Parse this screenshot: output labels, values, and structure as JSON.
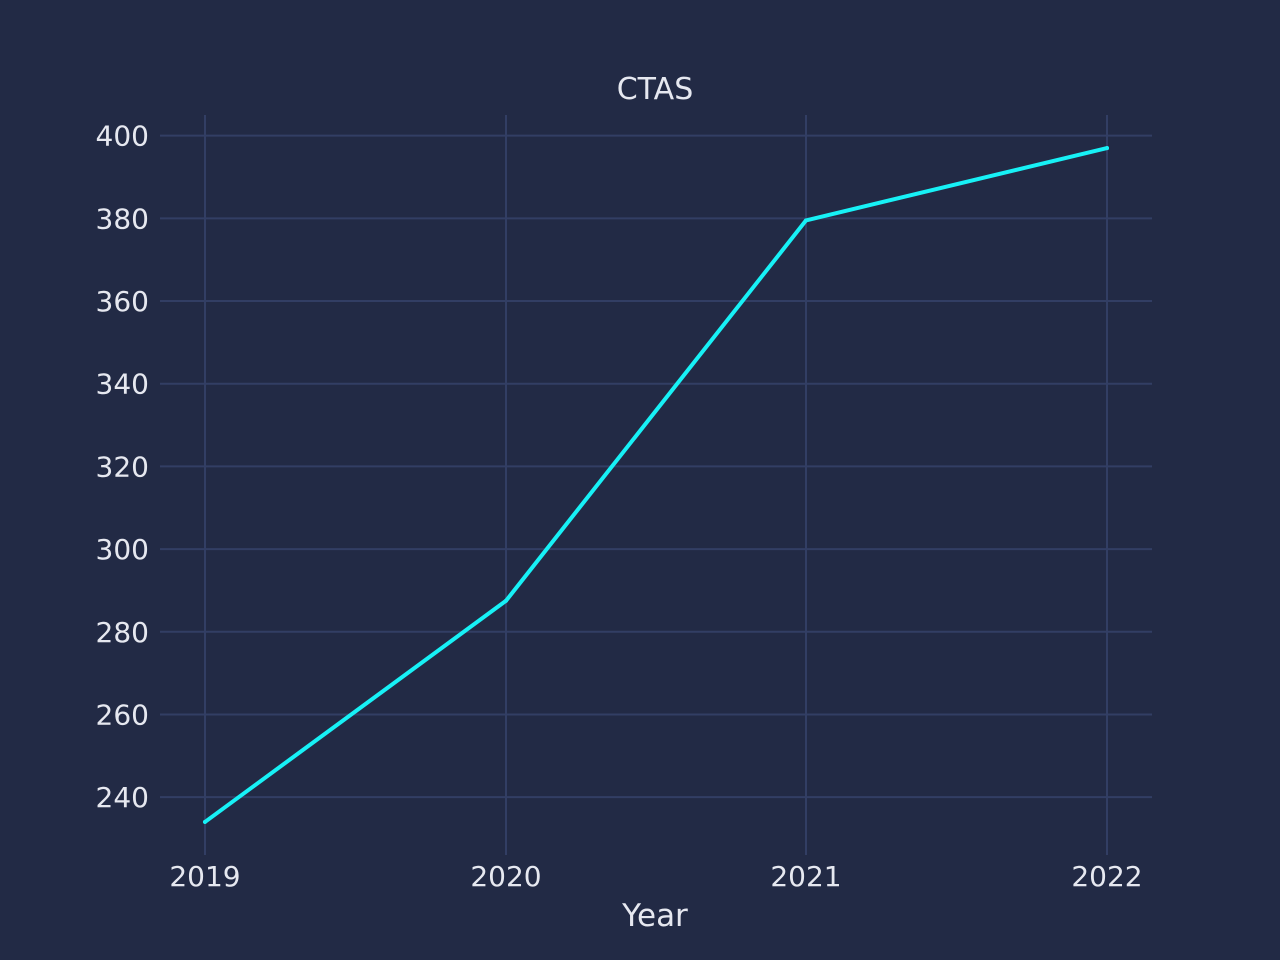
{
  "chart_data": {
    "type": "line",
    "title": "CTAS",
    "xlabel": "Year",
    "ylabel": "",
    "x": [
      "2019",
      "2020",
      "2021",
      "2022"
    ],
    "series": [
      {
        "values": [
          234,
          287.5,
          379.5,
          397
        ],
        "color": "#17f1f6"
      }
    ],
    "y_ticks": [
      "240",
      "260",
      "280",
      "300",
      "320",
      "340",
      "360",
      "380",
      "400"
    ],
    "ylim": [
      226,
      405
    ],
    "grid": true,
    "legend": "none",
    "colors": {
      "background": "#222a45",
      "grid": "#323e64",
      "text": "#e6e8f0",
      "line": "#17f1f6"
    }
  }
}
